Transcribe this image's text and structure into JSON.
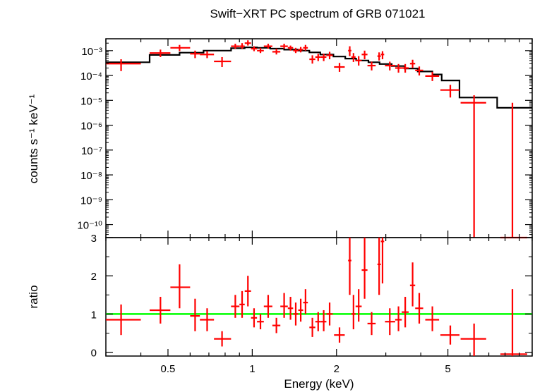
{
  "chart_data": {
    "type": "scatter",
    "title": "Swift−XRT PC spectrum of GRB 071021",
    "xlabel": "Energy (keV)",
    "xscale": "log",
    "xlim": [
      0.3,
      10
    ],
    "x_ticks": [
      {
        "value": 0.5,
        "label": "0.5"
      },
      {
        "value": 1,
        "label": "1"
      },
      {
        "value": 2,
        "label": "2"
      },
      {
        "value": 5,
        "label": "5"
      }
    ],
    "colors": {
      "data": "#ff0000",
      "model": "#000000",
      "ratio_line": "#00ff00"
    },
    "panels": [
      {
        "name": "spectrum",
        "ylabel": "counts s⁻¹ keV⁻¹",
        "yscale": "log",
        "ylim": [
          3e-11,
          0.003
        ],
        "y_ticks": [
          {
            "value": 0.001,
            "label": "10⁻³"
          },
          {
            "value": 0.0001,
            "label": "10⁻⁴"
          },
          {
            "value": 1e-05,
            "label": "10⁻⁵"
          },
          {
            "value": 1e-06,
            "label": "10⁻⁶"
          },
          {
            "value": 1e-07,
            "label": "10⁻⁷"
          },
          {
            "value": 1e-08,
            "label": "10⁻⁸"
          },
          {
            "value": 1e-09,
            "label": "10⁻⁹"
          },
          {
            "value": 1e-10,
            "label": "10⁻¹⁰"
          }
        ],
        "data": [
          {
            "x": 0.34,
            "xlo": 0.3,
            "xhi": 0.4,
            "y": 0.0003,
            "ylo": 0.00015,
            "yhi": 0.00045
          },
          {
            "x": 0.47,
            "xlo": 0.43,
            "xhi": 0.51,
            "y": 0.0008,
            "ylo": 0.00055,
            "yhi": 0.0011
          },
          {
            "x": 0.55,
            "xlo": 0.51,
            "xhi": 0.6,
            "y": 0.0013,
            "ylo": 0.00095,
            "yhi": 0.0017
          },
          {
            "x": 0.625,
            "xlo": 0.6,
            "xhi": 0.65,
            "y": 0.00075,
            "ylo": 0.0005,
            "yhi": 0.001
          },
          {
            "x": 0.69,
            "xlo": 0.65,
            "xhi": 0.73,
            "y": 0.0007,
            "ylo": 0.0005,
            "yhi": 0.00095
          },
          {
            "x": 0.78,
            "xlo": 0.73,
            "xhi": 0.84,
            "y": 0.00037,
            "ylo": 0.00022,
            "yhi": 0.00055
          },
          {
            "x": 0.87,
            "xlo": 0.84,
            "xhi": 0.9,
            "y": 0.0015,
            "ylo": 0.0012,
            "yhi": 0.0019
          },
          {
            "x": 0.92,
            "xlo": 0.9,
            "xhi": 0.94,
            "y": 0.0015,
            "ylo": 0.0012,
            "yhi": 0.002
          },
          {
            "x": 0.965,
            "xlo": 0.94,
            "xhi": 0.99,
            "y": 0.002,
            "ylo": 0.0016,
            "yhi": 0.0026
          },
          {
            "x": 1.015,
            "xlo": 0.99,
            "xhi": 1.04,
            "y": 0.0012,
            "ylo": 0.00095,
            "yhi": 0.0015
          },
          {
            "x": 1.07,
            "xlo": 1.04,
            "xhi": 1.1,
            "y": 0.001,
            "ylo": 0.0008,
            "yhi": 0.0013
          },
          {
            "x": 1.14,
            "xlo": 1.1,
            "xhi": 1.18,
            "y": 0.0015,
            "ylo": 0.0012,
            "yhi": 0.0019
          },
          {
            "x": 1.22,
            "xlo": 1.18,
            "xhi": 1.26,
            "y": 0.0009,
            "ylo": 0.0007,
            "yhi": 0.0012
          },
          {
            "x": 1.3,
            "xlo": 1.26,
            "xhi": 1.34,
            "y": 0.0015,
            "ylo": 0.0012,
            "yhi": 0.0019
          },
          {
            "x": 1.37,
            "xlo": 1.34,
            "xhi": 1.4,
            "y": 0.0013,
            "ylo": 0.001,
            "yhi": 0.0016
          },
          {
            "x": 1.43,
            "xlo": 1.4,
            "xhi": 1.46,
            "y": 0.001,
            "ylo": 0.0008,
            "yhi": 0.0013
          },
          {
            "x": 1.49,
            "xlo": 1.46,
            "xhi": 1.52,
            "y": 0.0011,
            "ylo": 0.00085,
            "yhi": 0.0014
          },
          {
            "x": 1.55,
            "xlo": 1.52,
            "xhi": 1.58,
            "y": 0.0013,
            "ylo": 0.001,
            "yhi": 0.0017
          },
          {
            "x": 1.64,
            "xlo": 1.6,
            "xhi": 1.68,
            "y": 0.00045,
            "ylo": 0.0003,
            "yhi": 0.00065
          },
          {
            "x": 1.72,
            "xlo": 1.68,
            "xhi": 1.76,
            "y": 0.00055,
            "ylo": 0.00038,
            "yhi": 0.00075
          },
          {
            "x": 1.8,
            "xlo": 1.76,
            "xhi": 1.84,
            "y": 0.00055,
            "ylo": 0.00038,
            "yhi": 0.00075
          },
          {
            "x": 1.89,
            "xlo": 1.84,
            "xhi": 1.94,
            "y": 0.00065,
            "ylo": 0.00045,
            "yhi": 0.0009
          },
          {
            "x": 2.05,
            "xlo": 1.96,
            "xhi": 2.14,
            "y": 0.00022,
            "ylo": 0.00014,
            "yhi": 0.00032
          },
          {
            "x": 2.23,
            "xlo": 2.2,
            "xhi": 2.26,
            "y": 0.001,
            "ylo": 0.0006,
            "yhi": 0.0015
          },
          {
            "x": 2.3,
            "xlo": 2.26,
            "xhi": 2.34,
            "y": 0.00055,
            "ylo": 0.00035,
            "yhi": 0.0008
          },
          {
            "x": 2.4,
            "xlo": 2.34,
            "xhi": 2.46,
            "y": 0.0004,
            "ylo": 0.00025,
            "yhi": 0.0006
          },
          {
            "x": 2.52,
            "xlo": 2.46,
            "xhi": 2.58,
            "y": 0.0007,
            "ylo": 0.00045,
            "yhi": 0.001
          },
          {
            "x": 2.67,
            "xlo": 2.58,
            "xhi": 2.76,
            "y": 0.00025,
            "ylo": 0.00016,
            "yhi": 0.00036
          },
          {
            "x": 2.84,
            "xlo": 2.8,
            "xhi": 2.88,
            "y": 0.0006,
            "ylo": 0.0004,
            "yhi": 0.00085
          },
          {
            "x": 2.92,
            "xlo": 2.88,
            "xhi": 2.96,
            "y": 0.0007,
            "ylo": 0.00045,
            "yhi": 0.00095
          },
          {
            "x": 3.1,
            "xlo": 2.98,
            "xhi": 3.24,
            "y": 0.00025,
            "ylo": 0.00016,
            "yhi": 0.00036
          },
          {
            "x": 3.33,
            "xlo": 3.24,
            "xhi": 3.42,
            "y": 0.0002,
            "ylo": 0.00013,
            "yhi": 0.00029
          },
          {
            "x": 3.52,
            "xlo": 3.42,
            "xhi": 3.62,
            "y": 0.0002,
            "ylo": 0.00013,
            "yhi": 0.00029
          },
          {
            "x": 3.74,
            "xlo": 3.66,
            "xhi": 3.82,
            "y": 0.0003,
            "ylo": 0.0002,
            "yhi": 0.00043
          },
          {
            "x": 3.95,
            "xlo": 3.82,
            "xhi": 4.08,
            "y": 0.00016,
            "ylo": 0.0001,
            "yhi": 0.00023
          },
          {
            "x": 4.4,
            "xlo": 4.15,
            "xhi": 4.65,
            "y": 9.5e-05,
            "ylo": 6e-05,
            "yhi": 0.00014
          },
          {
            "x": 5.1,
            "xlo": 4.7,
            "xhi": 5.5,
            "y": 2.6e-05,
            "ylo": 1.3e-05,
            "yhi": 4.2e-05
          },
          {
            "x": 6.2,
            "xlo": 5.55,
            "xhi": 6.85,
            "y": 8e-06,
            "ylo": 3e-11,
            "yhi": 1.6e-05
          },
          {
            "x": 8.5,
            "xlo": 7.7,
            "xhi": 9.6,
            "y": 3e-11,
            "ylo": 3e-11,
            "yhi": 8e-06
          }
        ],
        "model": [
          {
            "xlo": 0.3,
            "xhi": 0.43,
            "y": 0.00034
          },
          {
            "xlo": 0.43,
            "xhi": 0.55,
            "y": 0.00067
          },
          {
            "xlo": 0.55,
            "xhi": 0.67,
            "y": 0.00083
          },
          {
            "xlo": 0.67,
            "xhi": 0.84,
            "y": 0.001
          },
          {
            "xlo": 0.84,
            "xhi": 0.94,
            "y": 0.00125
          },
          {
            "xlo": 0.94,
            "xhi": 1.04,
            "y": 0.00135
          },
          {
            "xlo": 1.04,
            "xhi": 1.16,
            "y": 0.0013
          },
          {
            "xlo": 1.16,
            "xhi": 1.3,
            "y": 0.0012
          },
          {
            "xlo": 1.3,
            "xhi": 1.45,
            "y": 0.0011
          },
          {
            "xlo": 1.45,
            "xhi": 1.6,
            "y": 0.001
          },
          {
            "xlo": 1.6,
            "xhi": 1.75,
            "y": 0.00085
          },
          {
            "xlo": 1.75,
            "xhi": 1.95,
            "y": 0.0007
          },
          {
            "xlo": 1.95,
            "xhi": 2.15,
            "y": 0.00058
          },
          {
            "xlo": 2.15,
            "xhi": 2.35,
            "y": 0.00048
          },
          {
            "xlo": 2.35,
            "xhi": 2.6,
            "y": 0.0004
          },
          {
            "xlo": 2.6,
            "xhi": 2.85,
            "y": 0.00034
          },
          {
            "xlo": 2.85,
            "xhi": 3.15,
            "y": 0.00029
          },
          {
            "xlo": 3.15,
            "xhi": 3.5,
            "y": 0.00024
          },
          {
            "xlo": 3.5,
            "xhi": 3.9,
            "y": 0.00019
          },
          {
            "xlo": 3.9,
            "xhi": 4.4,
            "y": 0.000145
          },
          {
            "xlo": 4.4,
            "xhi": 4.75,
            "y": 0.00011
          },
          {
            "xlo": 4.75,
            "xhi": 5.5,
            "y": 6.3e-05
          },
          {
            "xlo": 5.5,
            "xhi": 7.5,
            "y": 1.3e-05
          },
          {
            "xlo": 7.5,
            "xhi": 10.0,
            "y": 5e-06
          }
        ]
      },
      {
        "name": "ratio",
        "ylabel": "ratio",
        "yscale": "linear",
        "ylim": [
          -0.1,
          3.0
        ],
        "y_ticks": [
          {
            "value": 0,
            "label": "0"
          },
          {
            "value": 1,
            "label": "1"
          },
          {
            "value": 2,
            "label": "2"
          },
          {
            "value": 3,
            "label": "3"
          }
        ],
        "reference_line": 1,
        "data": [
          {
            "x": 0.34,
            "xlo": 0.3,
            "xhi": 0.4,
            "y": 0.85,
            "ylo": 0.45,
            "yhi": 1.25
          },
          {
            "x": 0.47,
            "xlo": 0.43,
            "xhi": 0.51,
            "y": 1.1,
            "ylo": 0.75,
            "yhi": 1.45
          },
          {
            "x": 0.55,
            "xlo": 0.51,
            "xhi": 0.6,
            "y": 1.7,
            "ylo": 1.15,
            "yhi": 2.3
          },
          {
            "x": 0.625,
            "xlo": 0.6,
            "xhi": 0.65,
            "y": 0.95,
            "ylo": 0.55,
            "yhi": 1.4
          },
          {
            "x": 0.69,
            "xlo": 0.65,
            "xhi": 0.73,
            "y": 0.85,
            "ylo": 0.55,
            "yhi": 1.15
          },
          {
            "x": 0.78,
            "xlo": 0.73,
            "xhi": 0.84,
            "y": 0.35,
            "ylo": 0.15,
            "yhi": 0.55
          },
          {
            "x": 0.87,
            "xlo": 0.84,
            "xhi": 0.9,
            "y": 1.2,
            "ylo": 0.9,
            "yhi": 1.5
          },
          {
            "x": 0.92,
            "xlo": 0.9,
            "xhi": 0.94,
            "y": 1.25,
            "ylo": 0.9,
            "yhi": 1.6
          },
          {
            "x": 0.965,
            "xlo": 0.94,
            "xhi": 0.99,
            "y": 1.6,
            "ylo": 1.2,
            "yhi": 2.0
          },
          {
            "x": 1.015,
            "xlo": 0.99,
            "xhi": 1.04,
            "y": 0.9,
            "ylo": 0.65,
            "yhi": 1.15
          },
          {
            "x": 1.07,
            "xlo": 1.04,
            "xhi": 1.1,
            "y": 0.8,
            "ylo": 0.6,
            "yhi": 1.0
          },
          {
            "x": 1.14,
            "xlo": 1.1,
            "xhi": 1.18,
            "y": 1.2,
            "ylo": 0.9,
            "yhi": 1.5
          },
          {
            "x": 1.22,
            "xlo": 1.18,
            "xhi": 1.26,
            "y": 0.7,
            "ylo": 0.5,
            "yhi": 0.9
          },
          {
            "x": 1.3,
            "xlo": 1.26,
            "xhi": 1.34,
            "y": 1.2,
            "ylo": 0.9,
            "yhi": 1.55
          },
          {
            "x": 1.37,
            "xlo": 1.34,
            "xhi": 1.4,
            "y": 1.15,
            "ylo": 0.85,
            "yhi": 1.45
          },
          {
            "x": 1.43,
            "xlo": 1.4,
            "xhi": 1.46,
            "y": 1.0,
            "ylo": 0.7,
            "yhi": 1.3
          },
          {
            "x": 1.49,
            "xlo": 1.46,
            "xhi": 1.52,
            "y": 1.1,
            "ylo": 0.8,
            "yhi": 1.4
          },
          {
            "x": 1.55,
            "xlo": 1.52,
            "xhi": 1.58,
            "y": 1.3,
            "ylo": 1.0,
            "yhi": 1.65
          },
          {
            "x": 1.64,
            "xlo": 1.6,
            "xhi": 1.68,
            "y": 0.65,
            "ylo": 0.4,
            "yhi": 0.9
          },
          {
            "x": 1.72,
            "xlo": 1.68,
            "xhi": 1.76,
            "y": 0.8,
            "ylo": 0.55,
            "yhi": 1.05
          },
          {
            "x": 1.8,
            "xlo": 1.76,
            "xhi": 1.84,
            "y": 0.8,
            "ylo": 0.55,
            "yhi": 1.1
          },
          {
            "x": 1.89,
            "xlo": 1.84,
            "xhi": 1.94,
            "y": 1.0,
            "ylo": 0.7,
            "yhi": 1.3
          },
          {
            "x": 2.05,
            "xlo": 1.96,
            "xhi": 2.14,
            "y": 0.45,
            "ylo": 0.25,
            "yhi": 0.65
          },
          {
            "x": 2.23,
            "xlo": 2.2,
            "xhi": 2.26,
            "y": 2.4,
            "ylo": 1.5,
            "yhi": 3.0
          },
          {
            "x": 2.3,
            "xlo": 2.26,
            "xhi": 2.34,
            "y": 1.0,
            "ylo": 0.6,
            "yhi": 1.5
          },
          {
            "x": 2.4,
            "xlo": 2.34,
            "xhi": 2.46,
            "y": 1.2,
            "ylo": 0.8,
            "yhi": 1.65
          },
          {
            "x": 2.52,
            "xlo": 2.46,
            "xhi": 2.58,
            "y": 2.15,
            "ylo": 1.4,
            "yhi": 3.0
          },
          {
            "x": 2.67,
            "xlo": 2.58,
            "xhi": 2.76,
            "y": 0.75,
            "ylo": 0.45,
            "yhi": 1.05
          },
          {
            "x": 2.84,
            "xlo": 2.8,
            "xhi": 2.88,
            "y": 2.3,
            "ylo": 1.5,
            "yhi": 3.0
          },
          {
            "x": 2.92,
            "xlo": 2.88,
            "xhi": 2.96,
            "y": 2.9,
            "ylo": 1.8,
            "yhi": 3.0
          },
          {
            "x": 3.1,
            "xlo": 2.98,
            "xhi": 3.24,
            "y": 0.8,
            "ylo": 0.45,
            "yhi": 1.15
          },
          {
            "x": 3.33,
            "xlo": 3.24,
            "xhi": 3.42,
            "y": 0.85,
            "ylo": 0.55,
            "yhi": 1.2
          },
          {
            "x": 3.52,
            "xlo": 3.42,
            "xhi": 3.62,
            "y": 1.05,
            "ylo": 0.65,
            "yhi": 1.45
          },
          {
            "x": 3.74,
            "xlo": 3.66,
            "xhi": 3.82,
            "y": 1.75,
            "ylo": 1.2,
            "yhi": 2.35
          },
          {
            "x": 3.95,
            "xlo": 3.82,
            "xhi": 4.08,
            "y": 1.15,
            "ylo": 0.75,
            "yhi": 1.55
          },
          {
            "x": 4.4,
            "xlo": 4.15,
            "xhi": 4.65,
            "y": 0.85,
            "ylo": 0.55,
            "yhi": 1.2
          },
          {
            "x": 5.1,
            "xlo": 4.7,
            "xhi": 5.5,
            "y": 0.45,
            "ylo": 0.2,
            "yhi": 0.7
          },
          {
            "x": 6.2,
            "xlo": 5.55,
            "xhi": 6.85,
            "y": 0.35,
            "ylo": -0.1,
            "yhi": 0.75
          },
          {
            "x": 8.5,
            "xlo": 7.7,
            "xhi": 9.6,
            "y": -0.05,
            "ylo": -0.1,
            "yhi": 1.65
          }
        ]
      }
    ]
  }
}
